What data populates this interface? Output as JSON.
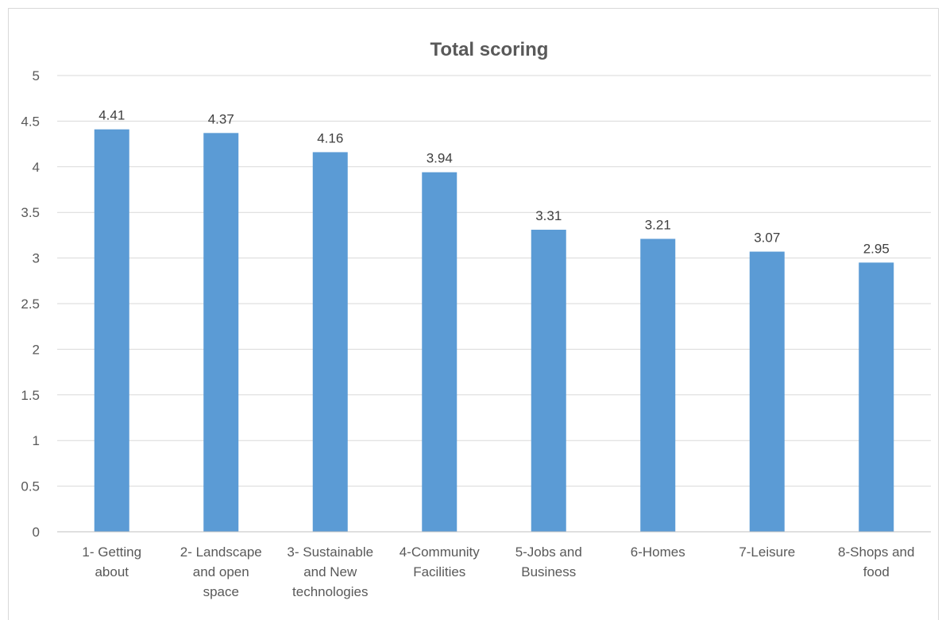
{
  "chart_data": {
    "type": "bar",
    "title": "Total scoring",
    "xlabel": "",
    "ylabel": "",
    "ylim": [
      0,
      5
    ],
    "ytick_step": 0.5,
    "yticks": [
      "0",
      "0.5",
      "1",
      "1.5",
      "2",
      "2.5",
      "3",
      "3.5",
      "4",
      "4.5",
      "5"
    ],
    "grid": true,
    "bar_color": "#5b9bd5",
    "categories": [
      [
        "1- Getting",
        "about"
      ],
      [
        "2- Landscape",
        "and open",
        "space"
      ],
      [
        "3- Sustainable",
        "and New",
        "technologies"
      ],
      [
        "4-Community",
        "Facilities"
      ],
      [
        "5-Jobs and",
        "Business"
      ],
      [
        "6-Homes"
      ],
      [
        "7-Leisure"
      ],
      [
        "8-Shops and",
        "food"
      ]
    ],
    "values": [
      4.41,
      4.37,
      4.16,
      3.94,
      3.31,
      3.21,
      3.07,
      2.95
    ],
    "data_labels": [
      "4.41",
      "4.37",
      "4.16",
      "3.94",
      "3.31",
      "3.21",
      "3.07",
      "2.95"
    ]
  }
}
